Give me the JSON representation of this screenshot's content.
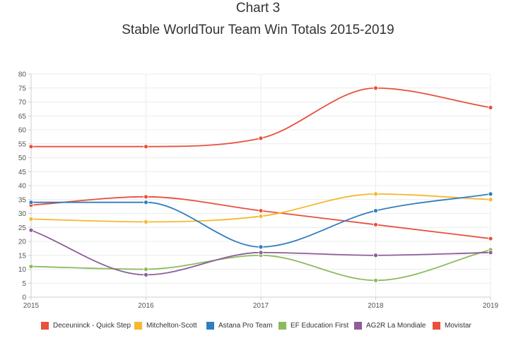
{
  "chart_data": {
    "type": "line",
    "title": "Chart 3",
    "subtitle": "Stable WorldTour Team Win Totals 2015-2019",
    "x": [
      "2015",
      "2016",
      "2017",
      "2018",
      "2019"
    ],
    "ylim": [
      0,
      80
    ],
    "yticks": [
      0,
      5,
      10,
      15,
      20,
      25,
      30,
      35,
      40,
      45,
      50,
      55,
      60,
      65,
      70,
      75,
      80
    ],
    "grid": true,
    "legend_placement": "bottom",
    "series": [
      {
        "name": "Deceuninck - Quick Step",
        "color": "#e8513c",
        "values": [
          33,
          36,
          31,
          26,
          21
        ]
      },
      {
        "name": "Mitchelton-Scott",
        "color": "#f5b82e",
        "values": [
          28,
          27,
          29,
          37,
          35
        ]
      },
      {
        "name": "Astana Pro Team",
        "color": "#2f7ec1",
        "values": [
          34,
          34,
          18,
          31,
          37
        ]
      },
      {
        "name": "EF Education First",
        "color": "#8bbb5c",
        "values": [
          11,
          10,
          15,
          6,
          17
        ]
      },
      {
        "name": "AG2R La Mondiale",
        "color": "#8c5d98",
        "values": [
          24,
          8,
          16,
          15,
          16
        ]
      },
      {
        "name": "Movistar",
        "color": "#e8513c",
        "values": [
          54,
          54,
          57,
          75,
          68
        ]
      }
    ]
  }
}
